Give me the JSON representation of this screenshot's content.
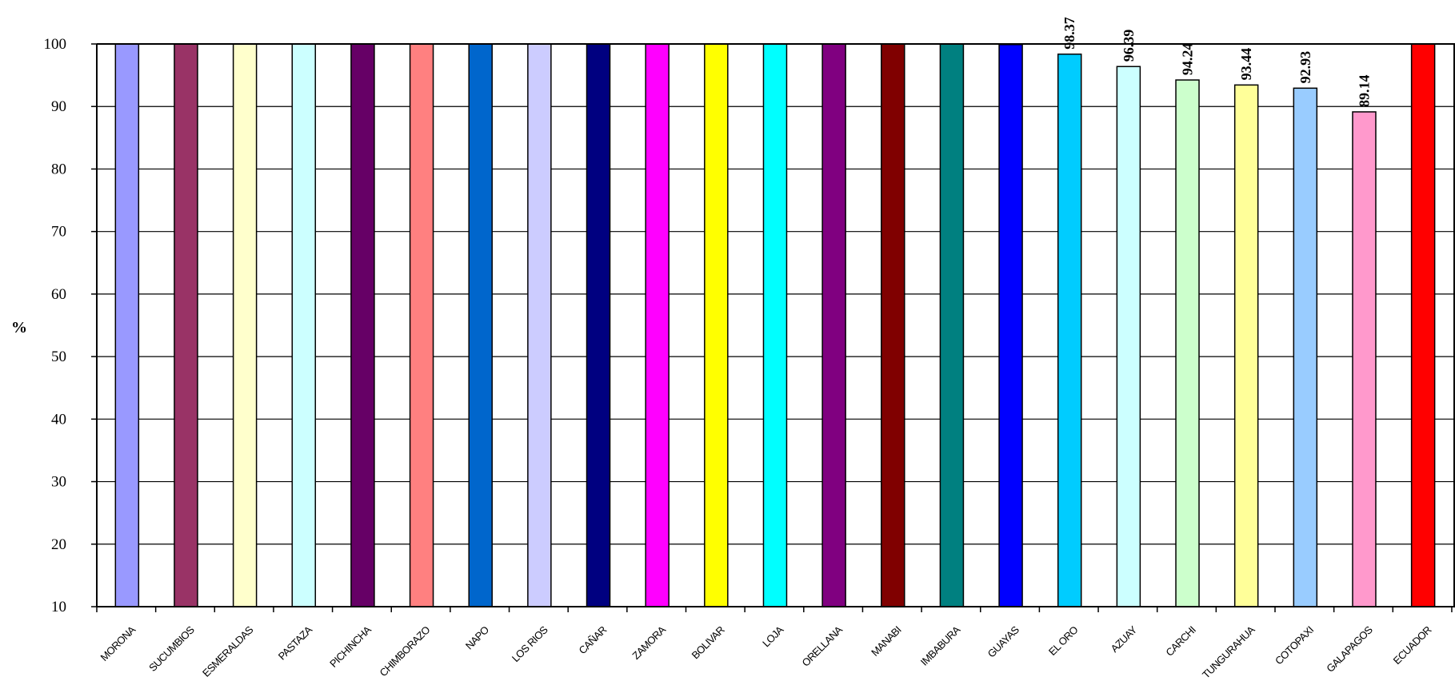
{
  "chart_data": {
    "type": "bar",
    "title": "",
    "xlabel": "",
    "ylabel": "%",
    "ylim": [
      10,
      100
    ],
    "yticks": [
      10,
      20,
      30,
      40,
      50,
      60,
      70,
      80,
      90,
      100
    ],
    "grid": true,
    "categories": [
      "MORONA",
      "SUCUMBIOS",
      "ESMERALDAS",
      "PASTAZA",
      "PICHINCHA",
      "CHIMBORAZO",
      "NAPO",
      "LOS RIOS",
      "CAÑAR",
      "ZAMORA",
      "BOLIVAR",
      "LOJA",
      "ORELLANA",
      "MANABI",
      "IMBABURA",
      "GUAYAS",
      "EL ORO",
      "AZUAY",
      "CARCHI",
      "TUNGURAHUA",
      "COTOPAXI",
      "GALAPAGOS",
      "ECUADOR"
    ],
    "values": [
      100,
      100,
      100,
      100,
      100,
      100,
      100,
      100,
      100,
      100,
      100,
      100,
      100,
      100,
      100,
      99.9,
      98.37,
      96.39,
      94.24,
      93.44,
      92.93,
      89.14,
      100
    ],
    "data_labels": [
      "",
      "",
      "",
      "",
      "",
      "",
      "",
      "",
      "",
      "",
      "",
      "",
      "",
      "",
      "",
      "",
      "98.37",
      "96.39",
      "94.24",
      "93.44",
      "92.93",
      "89.14",
      ""
    ],
    "colors": [
      "#9999ff",
      "#993366",
      "#ffffcc",
      "#ccffff",
      "#660066",
      "#ff8080",
      "#0066cc",
      "#ccccff",
      "#000080",
      "#ff00ff",
      "#ffff00",
      "#00ffff",
      "#800080",
      "#800000",
      "#008080",
      "#0000ff",
      "#00ccff",
      "#ccffff",
      "#ccffcc",
      "#ffff99",
      "#99ccff",
      "#ff99cc",
      "#ff0000"
    ]
  }
}
